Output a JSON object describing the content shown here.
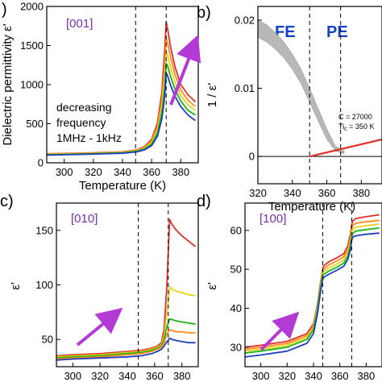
{
  "colors": {
    "blue": "#1f3fbf",
    "green": "#19b219",
    "yellow": "#e6d21a",
    "orange": "#ff8a1e",
    "red": "#e0302a",
    "arrow": "#b43ad6",
    "label_purple": "#7a2fb0",
    "phase_blue": "#1540c8",
    "band_gray": "#b8b8b8",
    "line_black": "#000000"
  },
  "panels": {
    "a": {
      "letter": ")"
    },
    "b": {
      "letter": "b)",
      "fe_label": "FE",
      "pe_label": "PE",
      "fit_c": "C = 27000",
      "fit_tc_prefix": "Ti",
      "fit_tc_sub": "c",
      "fit_tc_suffix": " = 350 K"
    },
    "c": {
      "letter": "c)"
    },
    "d": {
      "letter": "d)"
    }
  },
  "chart_data": [
    {
      "panel": "a",
      "type": "line",
      "annotation": "[001]",
      "note": [
        "decreasing",
        "frequency",
        "1MHz - 1kHz"
      ],
      "xlabel": "Temperature (K)",
      "ylabel": "Dielectric permittivity ε'",
      "xlim": [
        288,
        392
      ],
      "ylim": [
        0,
        2000
      ],
      "xticks": [
        300,
        320,
        340,
        360,
        380
      ],
      "yticks": [
        0,
        500,
        1000,
        1500,
        2000
      ],
      "vlines": [
        349,
        370
      ],
      "x": [
        288,
        300,
        320,
        340,
        350,
        355,
        360,
        364,
        367,
        369,
        370,
        371,
        373,
        376,
        380,
        385,
        390
      ],
      "series": [
        {
          "color_key": "red",
          "values": [
            115,
            120,
            128,
            140,
            165,
            205,
            300,
            510,
            900,
            1450,
            1800,
            1710,
            1480,
            1230,
            1000,
            870,
            780
          ]
        },
        {
          "color_key": "orange",
          "values": [
            112,
            117,
            125,
            137,
            160,
            195,
            280,
            460,
            800,
            1250,
            1600,
            1530,
            1350,
            1130,
            930,
            800,
            720
          ]
        },
        {
          "color_key": "yellow",
          "values": [
            108,
            113,
            121,
            133,
            155,
            185,
            260,
            420,
            720,
            1100,
            1420,
            1370,
            1220,
            1030,
            860,
            740,
            670
          ]
        },
        {
          "color_key": "green",
          "values": [
            103,
            108,
            116,
            128,
            148,
            175,
            240,
            380,
            640,
            960,
            1270,
            1240,
            1100,
            940,
            790,
            670,
            610
          ]
        },
        {
          "color_key": "blue",
          "values": [
            98,
            103,
            111,
            122,
            140,
            165,
            220,
            340,
            560,
            840,
            1150,
            1110,
            990,
            850,
            720,
            610,
            540
          ]
        }
      ]
    },
    {
      "panel": "b",
      "type": "scatter",
      "xlabel": "Temperature (K)",
      "ylabel": "1 / ε'",
      "xlim": [
        320,
        392
      ],
      "ylim": [
        -0.004,
        0.022
      ],
      "xticks": [
        320,
        340,
        360,
        380
      ],
      "yticks": [
        0,
        0.01,
        0.02
      ],
      "ytick_labels": [
        "0",
        "0.01",
        "0.02"
      ],
      "vlines": [
        350,
        368
      ],
      "baseline_y": 0,
      "band": {
        "x": [
          320,
          325,
          330,
          335,
          340,
          345,
          350,
          355,
          360,
          365,
          370
        ],
        "upper": [
          0.02,
          0.0193,
          0.0182,
          0.0168,
          0.015,
          0.0128,
          0.01,
          0.007,
          0.004,
          0.0015,
          0.0008
        ],
        "lower": [
          0.0175,
          0.0168,
          0.0158,
          0.0145,
          0.0128,
          0.0107,
          0.008,
          0.0052,
          0.0025,
          0.0008,
          0.0004
        ]
      },
      "fit": {
        "x": [
          350,
          392
        ],
        "y": [
          0,
          0.0025
        ]
      }
    },
    {
      "panel": "c",
      "type": "line",
      "annotation": "[010]",
      "xlabel": "Temperature (K)",
      "ylabel": "ε'",
      "xlim": [
        288,
        392
      ],
      "ylim": [
        25,
        175
      ],
      "xticks": [
        300,
        320,
        340,
        360,
        380
      ],
      "yticks": [
        50,
        100,
        150
      ],
      "vlines": [
        348,
        370
      ],
      "x": [
        288,
        300,
        320,
        340,
        350,
        358,
        362,
        365,
        367,
        369,
        370,
        371,
        373,
        376,
        380,
        385,
        390
      ],
      "series": [
        {
          "color_key": "red",
          "values": [
            35,
            36,
            37,
            39,
            40,
            42,
            44,
            47,
            60,
            100,
            130,
            160,
            155,
            150,
            145,
            140,
            135
          ]
        },
        {
          "color_key": "yellow",
          "values": [
            34,
            35,
            36,
            38,
            39,
            41,
            43,
            45,
            54,
            75,
            85,
            98,
            96,
            94,
            93,
            91,
            90
          ]
        },
        {
          "color_key": "green",
          "values": [
            33,
            34,
            35,
            37,
            38,
            40,
            42,
            44,
            50,
            62,
            65,
            69,
            68,
            67,
            66,
            65,
            64
          ]
        },
        {
          "color_key": "orange",
          "values": [
            32,
            33,
            34,
            36,
            37,
            39,
            41,
            43,
            47,
            55,
            57,
            59,
            58,
            57,
            57,
            56,
            56
          ]
        },
        {
          "color_key": "blue",
          "values": [
            31,
            32,
            33,
            34,
            35,
            37,
            39,
            41,
            44,
            48,
            49,
            51,
            50,
            49,
            48,
            47,
            47
          ]
        }
      ]
    },
    {
      "panel": "d",
      "type": "line",
      "annotation": "[100]",
      "xlabel": "Temperature (K)",
      "ylabel": "ε'",
      "xlim": [
        288,
        392
      ],
      "ylim": [
        25,
        67
      ],
      "xticks": [
        300,
        320,
        340,
        360,
        380
      ],
      "yticks": [
        30,
        40,
        50,
        60
      ],
      "vlines": [
        347,
        369
      ],
      "x": [
        288,
        300,
        320,
        335,
        340,
        343,
        345,
        347,
        348,
        352,
        358,
        363,
        366,
        368,
        369,
        370,
        372,
        376,
        380,
        390
      ],
      "series": [
        {
          "color_key": "red",
          "values": [
            30.0,
            30.5,
            31.5,
            33.5,
            36.0,
            41.0,
            46.0,
            50.0,
            51.0,
            52.0,
            53.0,
            54.0,
            56.0,
            59.0,
            61.5,
            62.5,
            63.0,
            63.3,
            63.5,
            64.0
          ]
        },
        {
          "color_key": "orange",
          "values": [
            29.5,
            30.0,
            31.0,
            33.0,
            35.5,
            40.5,
            45.5,
            49.5,
            50.2,
            51.2,
            52.2,
            53.2,
            55.0,
            58.0,
            60.5,
            61.3,
            61.8,
            62.0,
            62.2,
            62.6
          ]
        },
        {
          "color_key": "yellow",
          "values": [
            29.0,
            29.5,
            30.5,
            32.5,
            35.0,
            40.0,
            45.0,
            49.0,
            49.5,
            50.4,
            51.4,
            52.4,
            54.2,
            57.0,
            59.5,
            60.3,
            60.8,
            61.0,
            61.2,
            61.6
          ]
        },
        {
          "color_key": "green",
          "values": [
            28.5,
            29.0,
            30.0,
            32.0,
            34.5,
            39.5,
            44.5,
            48.5,
            48.8,
            49.6,
            50.6,
            51.6,
            53.3,
            56.0,
            58.5,
            59.3,
            59.8,
            60.0,
            60.2,
            60.6
          ]
        },
        {
          "color_key": "blue",
          "values": [
            27.5,
            28.0,
            29.0,
            31.0,
            33.5,
            38.5,
            43.5,
            47.5,
            48.0,
            48.8,
            49.8,
            50.8,
            52.5,
            55.0,
            57.5,
            58.3,
            58.6,
            58.8,
            59.0,
            59.3
          ]
        }
      ]
    }
  ]
}
